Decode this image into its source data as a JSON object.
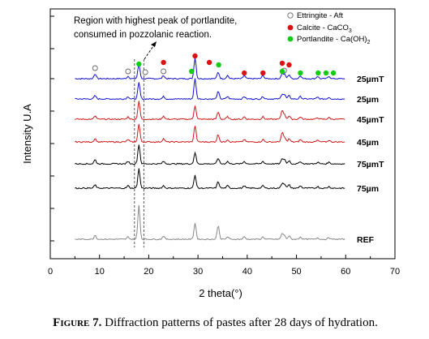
{
  "chart_data": {
    "type": "line",
    "xlabel": "2 theta(°)",
    "ylabel": "Intensity U.A",
    "xlim": [
      0,
      70
    ],
    "xticks": [
      0,
      10,
      20,
      30,
      40,
      50,
      60,
      70
    ],
    "grid": false,
    "peak_positions": [
      9.1,
      15.8,
      18.0,
      23.0,
      29.4,
      34.1,
      36.0,
      39.4,
      43.2,
      47.1,
      47.6,
      48.5,
      50.8,
      54.3,
      56.6
    ],
    "series": [
      {
        "name": "25µmT",
        "color": "#1010d0",
        "peak_heights": [
          6,
          3,
          18,
          4,
          26,
          8,
          4,
          4,
          4,
          6,
          5,
          5,
          4,
          3,
          3
        ]
      },
      {
        "name": "25µm",
        "color": "#1010d0",
        "peak_heights": [
          4,
          3,
          20,
          3,
          25,
          9,
          3,
          3,
          3,
          6,
          5,
          4,
          3,
          2,
          2
        ]
      },
      {
        "name": "45µmT",
        "color": "#d01818",
        "peak_heights": [
          4,
          3,
          22,
          4,
          17,
          9,
          3,
          3,
          3,
          11,
          5,
          4,
          3,
          2,
          2
        ]
      },
      {
        "name": "45µm",
        "color": "#d01818",
        "peak_heights": [
          4,
          3,
          22,
          4,
          20,
          9,
          3,
          3,
          3,
          11,
          5,
          4,
          3,
          2,
          2
        ]
      },
      {
        "name": "75µmT",
        "color": "#000000",
        "peak_heights": [
          5,
          3,
          24,
          3,
          14,
          7,
          3,
          3,
          3,
          6,
          5,
          4,
          3,
          2,
          2
        ]
      },
      {
        "name": "75µm",
        "color": "#000000",
        "peak_heights": [
          4,
          3,
          24,
          3,
          16,
          8,
          3,
          3,
          3,
          6,
          5,
          4,
          3,
          2,
          2
        ]
      },
      {
        "name": "REF",
        "color": "#888888",
        "peak_heights": [
          5,
          3,
          42,
          4,
          20,
          17,
          3,
          3,
          3,
          7,
          4,
          4,
          3,
          2,
          2
        ]
      }
    ],
    "reference_lines_x": [
      17.1,
      19.0
    ],
    "annotation": {
      "line1": "Region with highest peak of portlandite,",
      "line2": "consumed in pozzolanic reaction."
    },
    "legend": {
      "placement": "top-right",
      "entries": [
        {
          "label": "Ettringite - Aft",
          "marker": "open-circle",
          "color": "#666666"
        },
        {
          "label": "Calcite - CaCO",
          "subscript": "3",
          "marker": "filled-circle",
          "color": "#dd1111"
        },
        {
          "label": "Portlandite - Ca(OH)",
          "subscript": "2",
          "marker": "filled-circle",
          "color": "#11cc11"
        }
      ]
    },
    "phase_markers": [
      {
        "phase": "Ettringite",
        "x": 9.1
      },
      {
        "phase": "Ettringite",
        "x": 15.8
      },
      {
        "phase": "Ettringite",
        "x": 19.3
      },
      {
        "phase": "Ettringite",
        "x": 23.0
      },
      {
        "phase": "Ettringite",
        "x": 47.5
      },
      {
        "phase": "Portlandite",
        "x": 18.0
      },
      {
        "phase": "Portlandite",
        "x": 28.7
      },
      {
        "phase": "Portlandite",
        "x": 34.2
      },
      {
        "phase": "Portlandite",
        "x": 47.1
      },
      {
        "phase": "Portlandite",
        "x": 50.8
      },
      {
        "phase": "Portlandite",
        "x": 54.4
      },
      {
        "phase": "Portlandite",
        "x": 56.0
      },
      {
        "phase": "Portlandite",
        "x": 57.5
      },
      {
        "phase": "Calcite",
        "x": 23.0
      },
      {
        "phase": "Calcite",
        "x": 29.4
      },
      {
        "phase": "Calcite",
        "x": 32.3
      },
      {
        "phase": "Calcite",
        "x": 39.4
      },
      {
        "phase": "Calcite",
        "x": 43.2
      },
      {
        "phase": "Calcite",
        "x": 47.1
      },
      {
        "phase": "Calcite",
        "x": 48.5
      }
    ]
  },
  "caption": {
    "label": "Figure 7.",
    "text": " Diffraction patterns of pastes after 28 days of hydration."
  }
}
